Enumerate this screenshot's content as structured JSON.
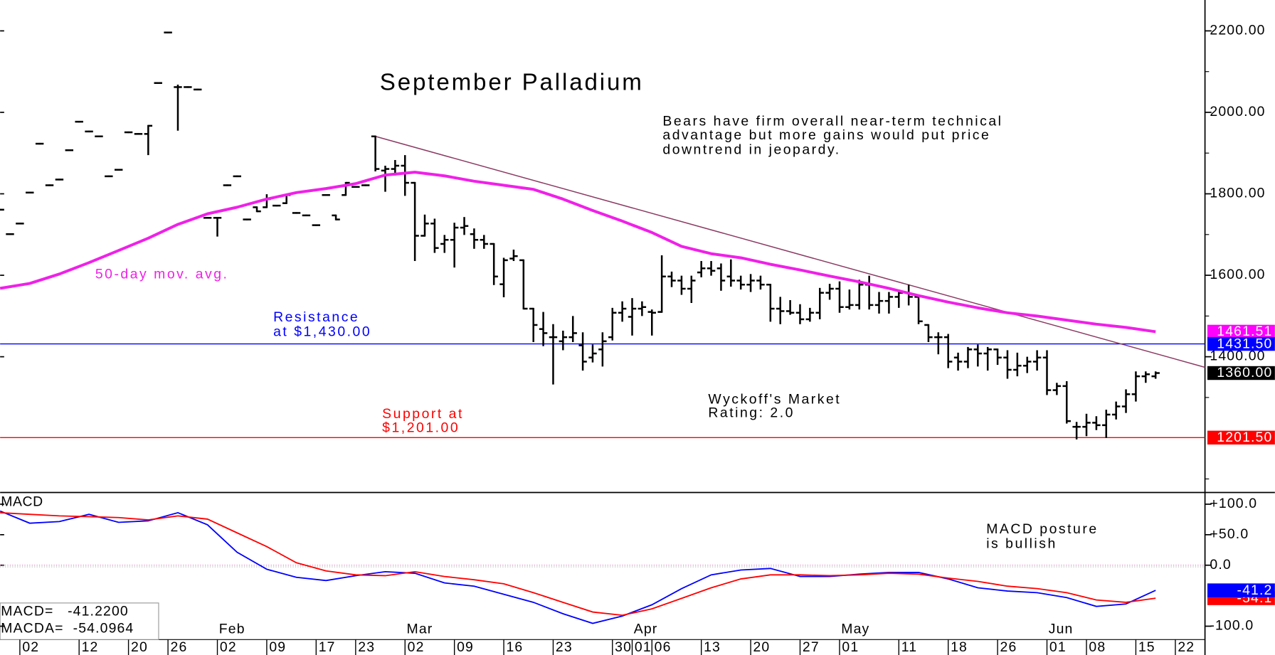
{
  "chart_data": [
    {
      "type": "ohlc",
      "title": "September Palladium",
      "commentary": [
        "Bears have firm overall near-term technical",
        "advantage but more gains would put price",
        "downtrend in jeopardy."
      ],
      "resistance_note": [
        "Resistance",
        "at $1,430.00"
      ],
      "support_note": [
        "Support at",
        "$1,201.00"
      ],
      "rating_note": [
        "Wyckoff's Market",
        "Rating: 2.0"
      ],
      "ma_label": "50-day mov. avg.",
      "xlim": [
        0,
        122
      ],
      "ylim": [
        1066.8,
        2275.8
      ],
      "yticks": [
        {
          "value": 2200,
          "label": "2200.00"
        },
        {
          "value": 2000,
          "label": "2000.00"
        },
        {
          "value": 1800,
          "label": "1800.00"
        },
        {
          "value": 1600,
          "label": "1600.00"
        },
        {
          "value": 1400,
          "label": "1400.00"
        }
      ],
      "minor_yticks": [
        2100,
        1900,
        1700,
        1500,
        1300,
        1100
      ],
      "bar_color": "#000000",
      "ohlc": [
        [
          1761,
          1761,
          1761,
          1761
        ],
        [
          1701,
          1701,
          1701,
          1701
        ],
        [
          1727,
          1727,
          1727,
          1727
        ],
        [
          1803,
          1803,
          1803,
          1803
        ],
        [
          1923,
          1923,
          1923,
          1923
        ],
        [
          1821,
          1821,
          1821,
          1821
        ],
        [
          1835,
          1835,
          1835,
          1835
        ],
        [
          1907,
          1907,
          1907,
          1907
        ],
        [
          1977,
          1977,
          1977,
          1977
        ],
        [
          1953,
          1953,
          1953,
          1953
        ],
        [
          1941,
          1941,
          1941,
          1941
        ],
        [
          1843,
          1843,
          1843,
          1843
        ],
        [
          1859,
          1859,
          1859,
          1859
        ],
        [
          1951,
          1951,
          1951,
          1951
        ],
        [
          1947,
          1947,
          1947,
          1947
        ],
        [
          1947,
          1967,
          1897,
          1967
        ],
        [
          2072,
          2072,
          2072,
          2072
        ],
        [
          2196,
          2196,
          2196,
          2196
        ],
        [
          2062,
          2066,
          1957,
          2062
        ],
        [
          2062,
          2062,
          2062,
          2062
        ],
        [
          2056,
          2056,
          2056,
          2056
        ],
        [
          1741,
          1741,
          1741,
          1741
        ],
        [
          1741,
          1741,
          1697,
          1741
        ],
        [
          1821,
          1821,
          1821,
          1821
        ],
        [
          1843,
          1843,
          1843,
          1843
        ],
        [
          1737,
          1737,
          1737,
          1737
        ],
        [
          1767,
          1767,
          1757,
          1757
        ],
        [
          1767,
          1797,
          1767,
          1787
        ],
        [
          1771,
          1771,
          1771,
          1771
        ],
        [
          1777,
          1797,
          1777,
          1797
        ],
        [
          1753,
          1753,
          1753,
          1753
        ],
        [
          1747,
          1747,
          1747,
          1747
        ],
        [
          1723,
          1723,
          1723,
          1723
        ],
        [
          1797,
          1797,
          1797,
          1797
        ],
        [
          1747,
          1747,
          1737,
          1737
        ],
        [
          1797,
          1827,
          1797,
          1827
        ],
        [
          1817,
          1817,
          1817,
          1817
        ],
        [
          1821,
          1821,
          1821,
          1821
        ],
        [
          1941,
          1941,
          1857,
          1861
        ],
        [
          1857,
          1867,
          1807,
          1861
        ],
        [
          1861,
          1881,
          1847,
          1869
        ],
        [
          1869,
          1893,
          1797,
          1827
        ],
        [
          1827,
          1827,
          1637,
          1697
        ],
        [
          1697,
          1747,
          1697,
          1727
        ],
        [
          1727,
          1737,
          1657,
          1667
        ],
        [
          1677,
          1697,
          1657,
          1687
        ],
        [
          1687,
          1727,
          1621,
          1717
        ],
        [
          1717,
          1741,
          1701,
          1721
        ],
        [
          1701,
          1713,
          1667,
          1687
        ],
        [
          1687,
          1697,
          1667,
          1677
        ],
        [
          1677,
          1677,
          1578,
          1597
        ],
        [
          1578,
          1641,
          1548,
          1637
        ],
        [
          1641,
          1661,
          1637,
          1647
        ],
        [
          1637,
          1637,
          1518,
          1518
        ],
        [
          1518,
          1518,
          1438,
          1478
        ],
        [
          1468,
          1508,
          1428,
          1458
        ],
        [
          1448,
          1478,
          1334,
          1448
        ],
        [
          1438,
          1462,
          1418,
          1448
        ],
        [
          1448,
          1498,
          1438,
          1458
        ],
        [
          1428,
          1458,
          1368,
          1388
        ],
        [
          1398,
          1428,
          1388,
          1408
        ],
        [
          1418,
          1458,
          1378,
          1438
        ],
        [
          1448,
          1518,
          1442,
          1508
        ],
        [
          1508,
          1534,
          1488,
          1518
        ],
        [
          1498,
          1542,
          1454,
          1518
        ],
        [
          1518,
          1534,
          1502,
          1522
        ],
        [
          1510,
          1514,
          1454,
          1508
        ],
        [
          1510,
          1647,
          1510,
          1597
        ],
        [
          1597,
          1607,
          1573,
          1587
        ],
        [
          1587,
          1597,
          1554,
          1567
        ],
        [
          1567,
          1597,
          1534,
          1587
        ],
        [
          1607,
          1633,
          1597,
          1617
        ],
        [
          1617,
          1633,
          1601,
          1611
        ],
        [
          1617,
          1627,
          1564,
          1587
        ],
        [
          1597,
          1637,
          1574,
          1587
        ],
        [
          1587,
          1597,
          1567,
          1577
        ],
        [
          1577,
          1601,
          1561,
          1587
        ],
        [
          1587,
          1597,
          1567,
          1577
        ],
        [
          1577,
          1577,
          1488,
          1518
        ],
        [
          1518,
          1545,
          1482,
          1512
        ],
        [
          1512,
          1537,
          1505,
          1508
        ],
        [
          1508,
          1527,
          1482,
          1492
        ],
        [
          1492,
          1518,
          1488,
          1508
        ],
        [
          1508,
          1567,
          1494,
          1557
        ],
        [
          1557,
          1577,
          1542,
          1567
        ],
        [
          1567,
          1583,
          1510,
          1522
        ],
        [
          1522,
          1563,
          1518,
          1527
        ],
        [
          1527,
          1587,
          1518,
          1577
        ],
        [
          1577,
          1597,
          1518,
          1527
        ],
        [
          1527,
          1557,
          1508,
          1537
        ],
        [
          1537,
          1557,
          1508,
          1547
        ],
        [
          1547,
          1563,
          1522,
          1557
        ],
        [
          1557,
          1575,
          1528,
          1547
        ],
        [
          1547,
          1549,
          1482,
          1487
        ],
        [
          1478,
          1478,
          1438,
          1448
        ],
        [
          1448,
          1458,
          1408,
          1448
        ],
        [
          1448,
          1454,
          1374,
          1388
        ],
        [
          1398,
          1408,
          1368,
          1388
        ],
        [
          1388,
          1422,
          1374,
          1418
        ],
        [
          1418,
          1428,
          1378,
          1408
        ],
        [
          1408,
          1422,
          1368,
          1418
        ],
        [
          1418,
          1418,
          1382,
          1398
        ],
        [
          1398,
          1414,
          1348,
          1368
        ],
        [
          1368,
          1408,
          1354,
          1378
        ],
        [
          1378,
          1398,
          1362,
          1388
        ],
        [
          1388,
          1414,
          1368,
          1398
        ],
        [
          1398,
          1414,
          1308,
          1318
        ],
        [
          1318,
          1334,
          1308,
          1328
        ],
        [
          1328,
          1338,
          1238,
          1242
        ],
        [
          1228,
          1238,
          1199,
          1228
        ],
        [
          1228,
          1258,
          1207,
          1238
        ],
        [
          1238,
          1252,
          1222,
          1232
        ],
        [
          1232,
          1268,
          1203,
          1258
        ],
        [
          1258,
          1288,
          1248,
          1278
        ],
        [
          1278,
          1318,
          1264,
          1308
        ],
        [
          1308,
          1362,
          1292,
          1352
        ],
        [
          1352,
          1362,
          1338,
          1357
        ],
        [
          1352,
          1362,
          1348,
          1360
        ]
      ],
      "moving_average": {
        "color": "#f020e8",
        "x": [
          0,
          3,
          6,
          9,
          12,
          15,
          18,
          21,
          24,
          27,
          30,
          33,
          36,
          39,
          42,
          45,
          48,
          51,
          54,
          57,
          60,
          63,
          66,
          69,
          72,
          75,
          78,
          81,
          84,
          87,
          90,
          93,
          96,
          99,
          102,
          105,
          108,
          111,
          114,
          117
        ],
        "values": [
          1568,
          1580,
          1603,
          1631,
          1661,
          1691,
          1725,
          1751,
          1767,
          1787,
          1803,
          1813,
          1825,
          1846,
          1853,
          1844,
          1831,
          1821,
          1811,
          1787,
          1759,
          1733,
          1705,
          1671,
          1653,
          1643,
          1627,
          1613,
          1598,
          1584,
          1568,
          1550,
          1534,
          1520,
          1508,
          1500,
          1490,
          1480,
          1472,
          1461.51
        ]
      },
      "trendline": {
        "color": "#8b3a62",
        "x": [
          38,
          122
        ],
        "values": [
          1941,
          1374
        ]
      },
      "levels": [
        {
          "value": 1431.5,
          "color": "#0000ff"
        },
        {
          "value": 1201.5,
          "color": "#ff0000"
        }
      ],
      "tags": [
        {
          "value": 1461.51,
          "label": "1461.51",
          "color": "#ff00ff"
        },
        {
          "value": 1431.5,
          "label": "1431.50",
          "color": "#0000ff"
        },
        {
          "value": 1360,
          "label": "1360.00",
          "color": "#000000"
        },
        {
          "value": 1201.5,
          "label": "1201.50",
          "color": "#ff0000"
        }
      ]
    },
    {
      "type": "line",
      "title": "MACD",
      "commentary": [
        "MACD posture",
        "is bullish"
      ],
      "readout": [
        "MACD=   -41.2200",
        "MACDA=  -54.0964"
      ],
      "xlim": [
        0,
        122
      ],
      "ylim": [
        -121.9,
        117.9
      ],
      "yticks": [
        {
          "value": 100,
          "label": "+100.0"
        },
        {
          "value": 50,
          "label": "+50.0"
        },
        {
          "value": 0,
          "label": "0.0"
        },
        {
          "value": -100,
          "label": "-100.0"
        }
      ],
      "x": [
        0,
        3,
        6,
        9,
        12,
        15,
        18,
        21,
        24,
        27,
        30,
        33,
        36,
        39,
        42,
        45,
        48,
        51,
        54,
        57,
        60,
        63,
        66,
        69,
        72,
        75,
        78,
        81,
        84,
        87,
        90,
        93,
        96,
        99,
        102,
        105,
        108,
        111,
        114,
        117
      ],
      "series": [
        {
          "color": "#0000ff",
          "values": [
            88.7,
            68.9,
            71.5,
            83.4,
            70.2,
            72.8,
            86.1,
            66.2,
            21.2,
            -6.6,
            -19.9,
            -25.2,
            -17.2,
            -10.6,
            -13.2,
            -29.1,
            -34.4,
            -47.7,
            -60.9,
            -79.5,
            -95.4,
            -83.4,
            -64.9,
            -38.4,
            -15.9,
            -7.9,
            -5.3,
            -18.5,
            -18.5,
            -14.6,
            -11.9,
            -11.9,
            -22.5,
            -37.1,
            -42.4,
            -45.0,
            -53.0,
            -67.5,
            -63.6,
            -41.22
          ]
        },
        {
          "color": "#ff0000",
          "values": [
            86.1,
            83.4,
            80.8,
            79.5,
            78.1,
            74.2,
            80.8,
            75.5,
            53.0,
            30.5,
            4.0,
            -9.3,
            -15.9,
            -17.2,
            -10.6,
            -18.5,
            -23.8,
            -30.5,
            -45.0,
            -60.9,
            -76.8,
            -82.1,
            -71.5,
            -54.3,
            -37.1,
            -22.5,
            -15.9,
            -15.9,
            -17.2,
            -15.9,
            -13.2,
            -14.6,
            -21.2,
            -26.5,
            -34.4,
            -38.4,
            -45.0,
            -57.0,
            -60.9,
            -54.0964
          ]
        }
      ],
      "tags": [
        {
          "value": -54.0964,
          "label": "-54.1",
          "color": "#ff0000"
        },
        {
          "value": -41.22,
          "label": "-41.2",
          "color": "#0000ff"
        }
      ],
      "xticks": [
        {
          "value": 2,
          "label": "02"
        },
        {
          "value": 8,
          "label": "12"
        },
        {
          "value": 13,
          "label": "20"
        },
        {
          "value": 17,
          "label": "26"
        },
        {
          "value": 22,
          "label": "02"
        },
        {
          "value": 27,
          "label": "09"
        },
        {
          "value": 32,
          "label": "17"
        },
        {
          "value": 36,
          "label": "23"
        },
        {
          "value": 41,
          "label": "02"
        },
        {
          "value": 46,
          "label": "09"
        },
        {
          "value": 51,
          "label": "16"
        },
        {
          "value": 56,
          "label": "23"
        },
        {
          "value": 62,
          "label": "30"
        },
        {
          "value": 64,
          "label": "01"
        },
        {
          "value": 66,
          "label": "06"
        },
        {
          "value": 71,
          "label": "13"
        },
        {
          "value": 76,
          "label": "20"
        },
        {
          "value": 81,
          "label": "27"
        },
        {
          "value": 85,
          "label": "01"
        },
        {
          "value": 91,
          "label": "11"
        },
        {
          "value": 96,
          "label": "18"
        },
        {
          "value": 101,
          "label": "26"
        },
        {
          "value": 106,
          "label": "01"
        },
        {
          "value": 110,
          "label": "08"
        },
        {
          "value": 115,
          "label": "15"
        },
        {
          "value": 119,
          "label": "22"
        }
      ],
      "month_ticks": [
        {
          "value": 22,
          "label": "Feb"
        },
        {
          "value": 41,
          "label": "Mar"
        },
        {
          "value": 64,
          "label": "Apr"
        },
        {
          "value": 85,
          "label": "May"
        },
        {
          "value": 106,
          "label": "Jun"
        }
      ]
    }
  ]
}
